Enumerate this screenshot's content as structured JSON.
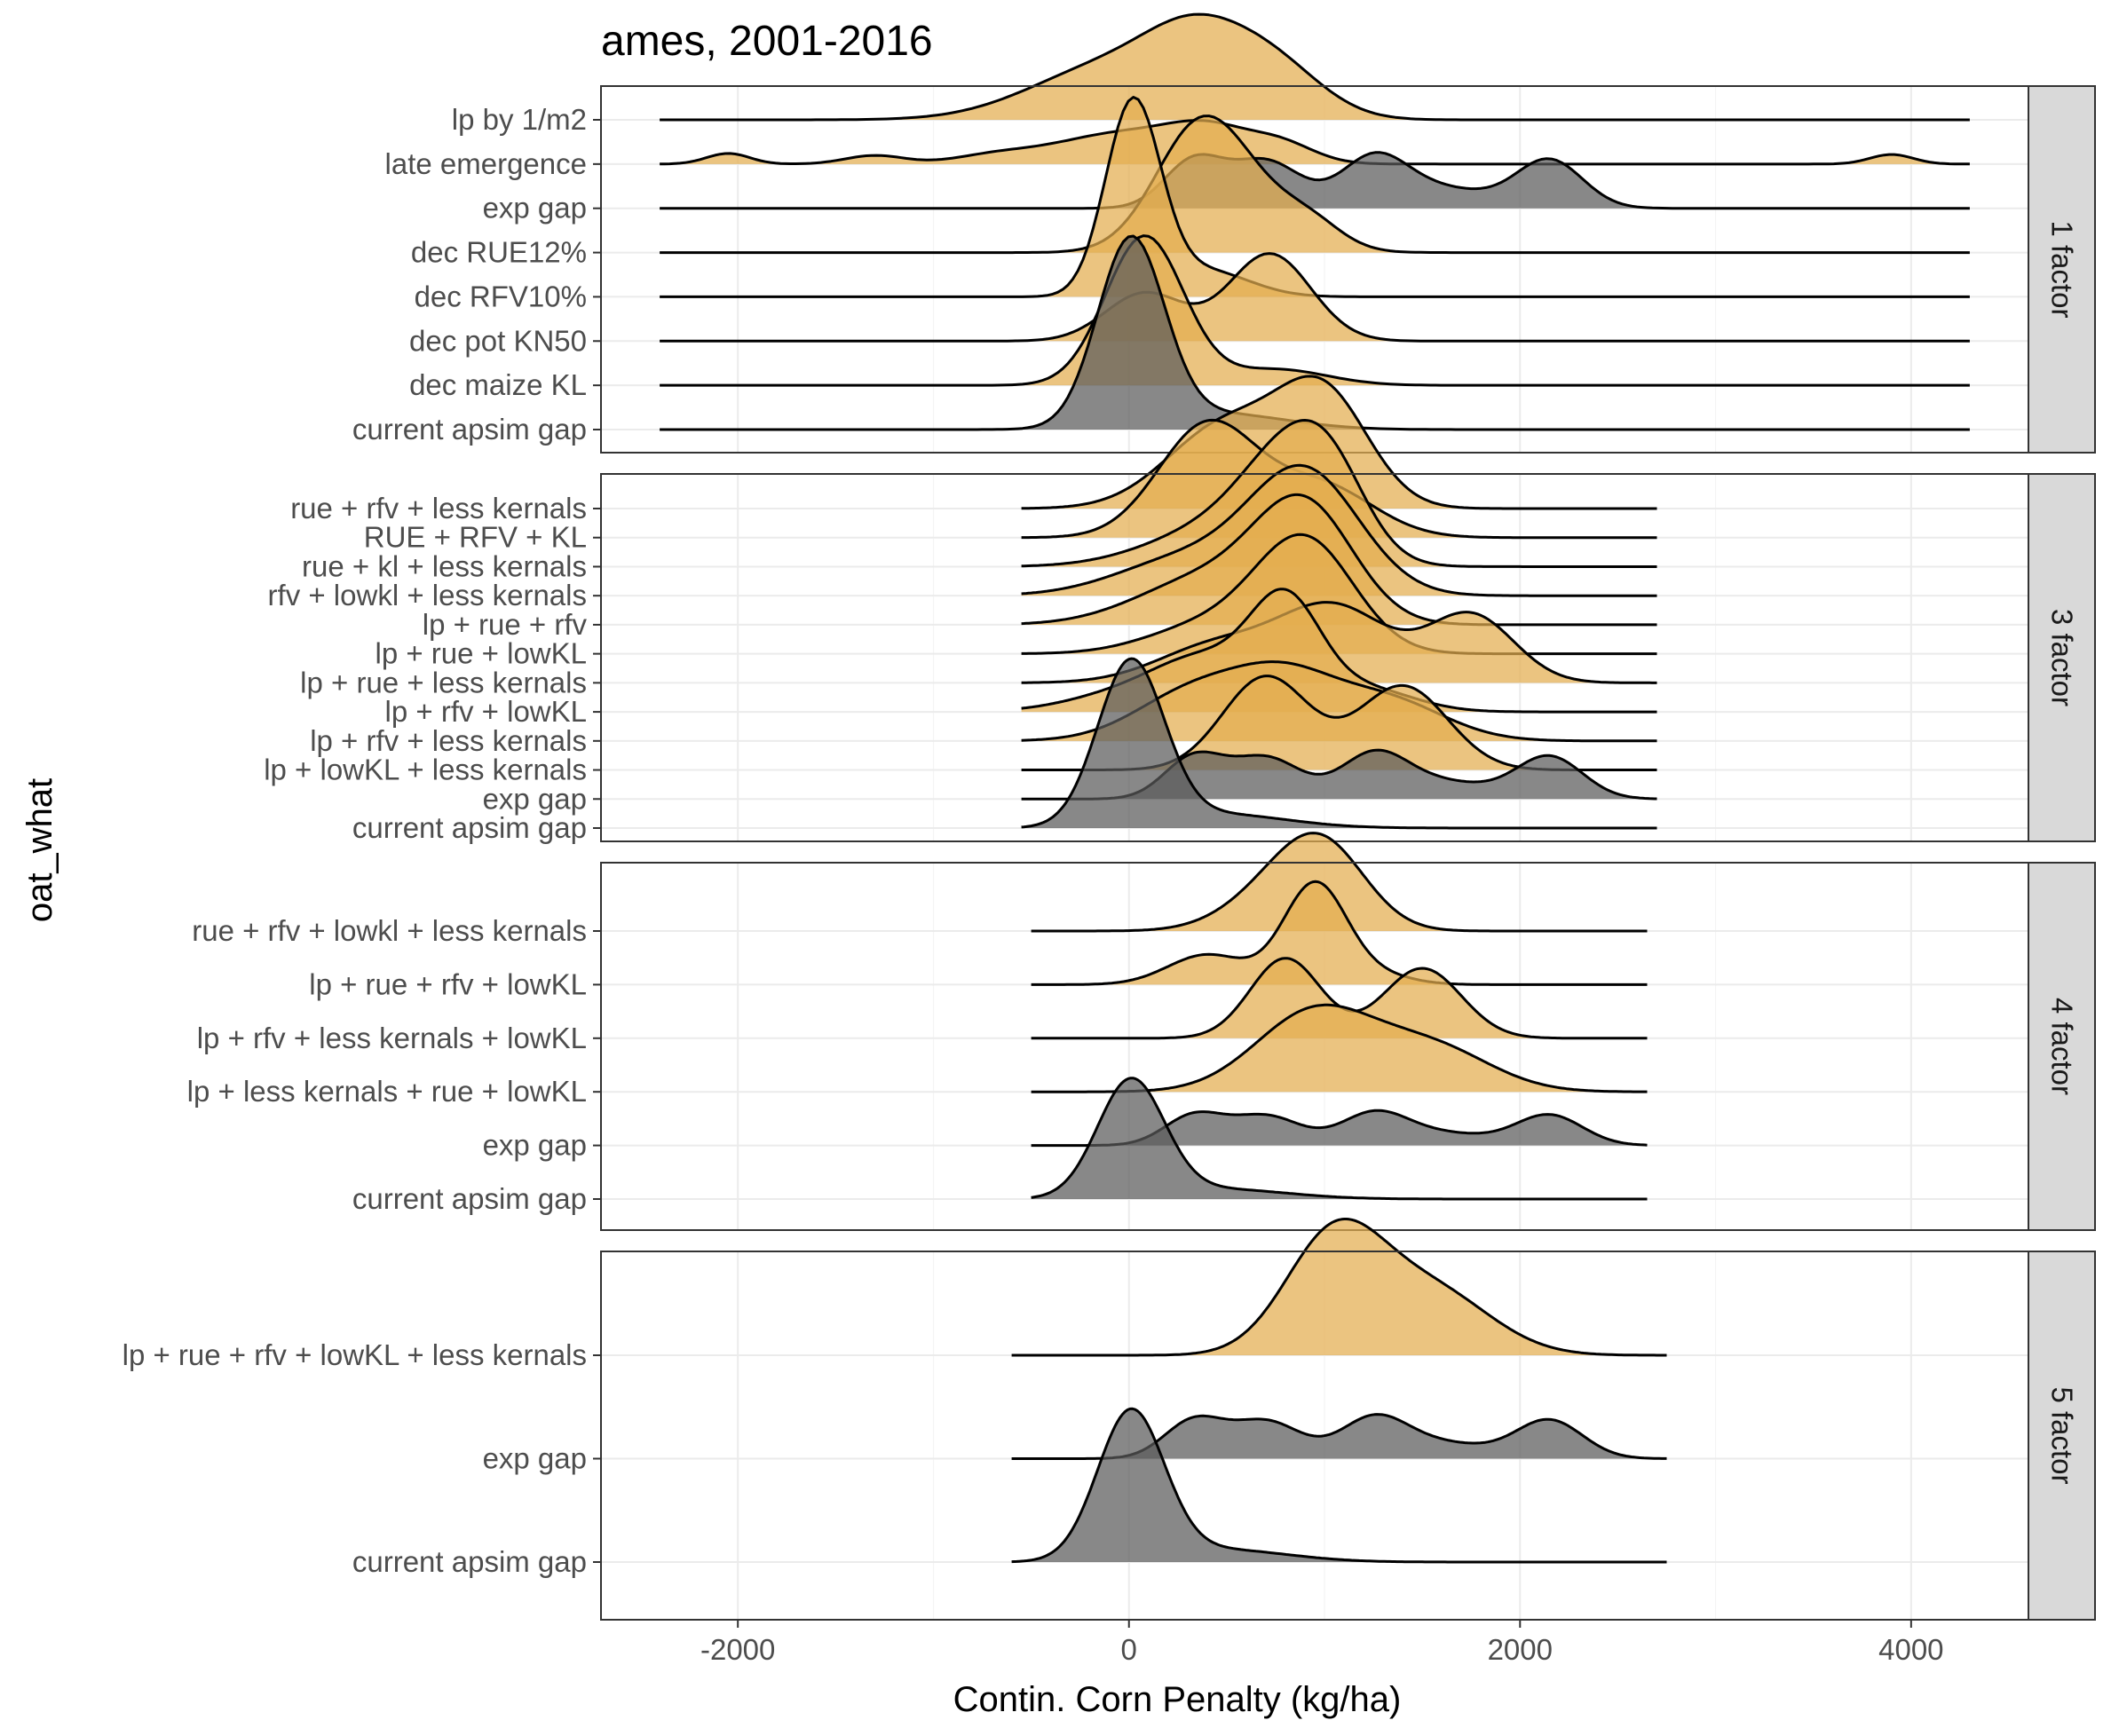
{
  "chart_data": {
    "type": "ridgeline",
    "title": "ames, 2001-2016",
    "xlabel": "Contin. Corn Penalty (kg/ha)",
    "ylabel": "oat_what",
    "xlim": [
      -2700,
      4600
    ],
    "x_ticks": [
      -2000,
      0,
      2000,
      4000
    ],
    "x_tick_labels": [
      "-2000",
      "0",
      "2000",
      "4000"
    ],
    "fill_colors": {
      "factor": "#e3ad4f",
      "gap": "#5a5a5a"
    },
    "panels": [
      {
        "strip": "1 factor",
        "rows": [
          {
            "label": "lp by 1/m2",
            "color": "factor",
            "range": [
              -2400,
              4300
            ],
            "peaks": [
              [
                -100,
                400,
                0.5
              ],
              [
                350,
                260,
                0.6
              ],
              [
                750,
                250,
                0.45
              ]
            ]
          },
          {
            "label": "late emergence",
            "color": "factor",
            "range": [
              -2400,
              4300
            ],
            "peaks": [
              [
                -2050,
                110,
                0.1
              ],
              [
                -1300,
                150,
                0.08
              ],
              [
                -700,
                200,
                0.06
              ],
              [
                0,
                380,
                0.3
              ],
              [
                420,
                200,
                0.22
              ],
              [
                780,
                170,
                0.17
              ],
              [
                3900,
                110,
                0.09
              ]
            ]
          },
          {
            "label": "exp gap",
            "color": "gap",
            "range": [
              -2400,
              4300
            ],
            "peaks": [
              [
                330,
                150,
                0.44
              ],
              [
                700,
                180,
                0.44
              ],
              [
                1250,
                170,
                0.45
              ],
              [
                1600,
                250,
                0.18
              ],
              [
                2150,
                170,
                0.45
              ]
            ]
          },
          {
            "label": "dec RUE12%",
            "color": "factor",
            "range": [
              -2400,
              4300
            ],
            "peaks": [
              [
                370,
                230,
                1.2
              ],
              [
                750,
                230,
                0.3
              ],
              [
                950,
                150,
                0.13
              ]
            ]
          },
          {
            "label": "dec RFV10%",
            "color": "factor",
            "range": [
              -2400,
              4300
            ],
            "peaks": [
              [
                20,
                140,
                1.8
              ],
              [
                380,
                230,
                0.25
              ]
            ]
          },
          {
            "label": "dec pot KN50",
            "color": "factor",
            "range": [
              -2400,
              4300
            ],
            "peaks": [
              [
                80,
                200,
                0.45
              ],
              [
                720,
                210,
                0.82
              ]
            ]
          },
          {
            "label": "dec maize KL",
            "color": "factor",
            "range": [
              -2400,
              4300
            ],
            "peaks": [
              [
                80,
                200,
                1.4
              ],
              [
                750,
                260,
                0.15
              ]
            ]
          },
          {
            "label": "current apsim gap",
            "color": "gap",
            "range": [
              -2400,
              4300
            ],
            "peaks": [
              [
                10,
                170,
                1.75
              ],
              [
                450,
                350,
                0.15
              ]
            ]
          }
        ]
      },
      {
        "strip": "3 factor",
        "rows": [
          {
            "label": "rue + rfv + less kernals",
            "color": "factor",
            "range": [
              -550,
              2700
            ],
            "peaks": [
              [
                500,
                300,
                0.9
              ],
              [
                1000,
                230,
                1.15
              ]
            ]
          },
          {
            "label": "RUE + RFV + KL",
            "color": "factor",
            "range": [
              -550,
              2700
            ],
            "peaks": [
              [
                400,
                250,
                1.2
              ],
              [
                980,
                270,
                0.55
              ]
            ]
          },
          {
            "label": "rue + kl + less kernals",
            "color": "factor",
            "range": [
              -550,
              2700
            ],
            "peaks": [
              [
                450,
                350,
                0.4
              ],
              [
                850,
                250,
                1.1
              ],
              [
                1050,
                180,
                0.45
              ]
            ]
          },
          {
            "label": "rfv + lowkl + less kernals",
            "color": "factor",
            "range": [
              -550,
              2700
            ],
            "peaks": [
              [
                300,
                350,
                0.4
              ],
              [
                900,
                280,
                1.3
              ]
            ]
          },
          {
            "label": "lp + rue + rfv",
            "color": "factor",
            "range": [
              -550,
              2700
            ],
            "peaks": [
              [
                400,
                350,
                0.5
              ],
              [
                900,
                250,
                1.2
              ]
            ]
          },
          {
            "label": "lp + rue + lowKL",
            "color": "factor",
            "range": [
              -550,
              2700
            ],
            "peaks": [
              [
                400,
                300,
                0.3
              ],
              [
                900,
                250,
                1.2
              ]
            ]
          },
          {
            "label": "lp + rue + less kernals",
            "color": "factor",
            "range": [
              -550,
              2700
            ],
            "peaks": [
              [
                450,
                300,
                0.4
              ],
              [
                1050,
                280,
                0.8
              ],
              [
                1750,
                220,
                0.72
              ]
            ]
          },
          {
            "label": "lp + rfv + lowKL",
            "color": "factor",
            "range": [
              -550,
              2700
            ],
            "peaks": [
              [
                0,
                300,
                0.2
              ],
              [
                400,
                250,
                0.5
              ],
              [
                800,
                180,
                1.1
              ],
              [
                1200,
                250,
                0.25
              ]
            ]
          },
          {
            "label": "lp + rfv + less kernals",
            "color": "factor",
            "range": [
              -550,
              2700
            ],
            "peaks": [
              [
                350,
                300,
                0.55
              ],
              [
                800,
                250,
                0.55
              ],
              [
                1300,
                300,
                0.45
              ]
            ]
          },
          {
            "label": "lp + lowKL + less kernals",
            "color": "factor",
            "range": [
              -550,
              2700
            ],
            "peaks": [
              [
                700,
                220,
                1.0
              ],
              [
                1400,
                230,
                0.9
              ]
            ]
          },
          {
            "label": "exp gap",
            "color": "gap",
            "range": [
              -550,
              2700
            ],
            "peaks": [
              [
                330,
                150,
                0.44
              ],
              [
                700,
                180,
                0.44
              ],
              [
                1250,
                170,
                0.45
              ],
              [
                1600,
                250,
                0.18
              ],
              [
                2150,
                170,
                0.45
              ]
            ]
          },
          {
            "label": "current apsim gap",
            "color": "gap",
            "range": [
              -550,
              2700
            ],
            "peaks": [
              [
                10,
                170,
                1.75
              ],
              [
                450,
                350,
                0.15
              ]
            ]
          }
        ]
      },
      {
        "strip": "4 factor",
        "rows": [
          {
            "label": "rue + rfv + lowkl + less kernals",
            "color": "factor",
            "range": [
              -500,
              2650
            ],
            "peaks": [
              [
                750,
                250,
                0.55
              ],
              [
                1000,
                220,
                1.1
              ]
            ]
          },
          {
            "label": "lp + rue + rfv + lowKL",
            "color": "factor",
            "range": [
              -500,
              2650
            ],
            "peaks": [
              [
                400,
                200,
                0.45
              ],
              [
                950,
                160,
                1.5
              ],
              [
                1250,
                180,
                0.15
              ]
            ]
          },
          {
            "label": "lp + rfv + less kernals + lowKL",
            "color": "factor",
            "range": [
              -500,
              2650
            ],
            "peaks": [
              [
                800,
                180,
                1.2
              ],
              [
                1500,
                200,
                1.05
              ]
            ]
          },
          {
            "label": "lp  + less kernals + rue + lowKL",
            "color": "factor",
            "range": [
              -500,
              2650
            ],
            "peaks": [
              [
                950,
                300,
                1.2
              ],
              [
                1550,
                300,
                0.65
              ]
            ]
          },
          {
            "label": "exp gap",
            "color": "gap",
            "range": [
              -500,
              2650
            ],
            "peaks": [
              [
                330,
                150,
                0.44
              ],
              [
                700,
                180,
                0.44
              ],
              [
                1250,
                170,
                0.45
              ],
              [
                1600,
                250,
                0.18
              ],
              [
                2150,
                170,
                0.45
              ]
            ]
          },
          {
            "label": "current apsim gap",
            "color": "gap",
            "range": [
              -500,
              2650
            ],
            "peaks": [
              [
                10,
                170,
                1.75
              ],
              [
                450,
                350,
                0.15
              ]
            ]
          }
        ]
      },
      {
        "strip": "5 factor",
        "rows": [
          {
            "label": "lp + rue + rfv + lowKL + less kernals",
            "color": "factor",
            "range": [
              -600,
              2750
            ],
            "peaks": [
              [
                1050,
                250,
                1.4
              ],
              [
                1550,
                300,
                0.75
              ]
            ]
          },
          {
            "label": "exp gap",
            "color": "gap",
            "range": [
              -600,
              2750
            ],
            "peaks": [
              [
                330,
                150,
                0.44
              ],
              [
                700,
                180,
                0.44
              ],
              [
                1250,
                170,
                0.45
              ],
              [
                1600,
                250,
                0.18
              ],
              [
                2150,
                170,
                0.45
              ]
            ]
          },
          {
            "label": "current apsim gap",
            "color": "gap",
            "range": [
              -600,
              2750
            ],
            "peaks": [
              [
                10,
                170,
                1.75
              ],
              [
                450,
                350,
                0.15
              ]
            ]
          }
        ]
      }
    ]
  }
}
